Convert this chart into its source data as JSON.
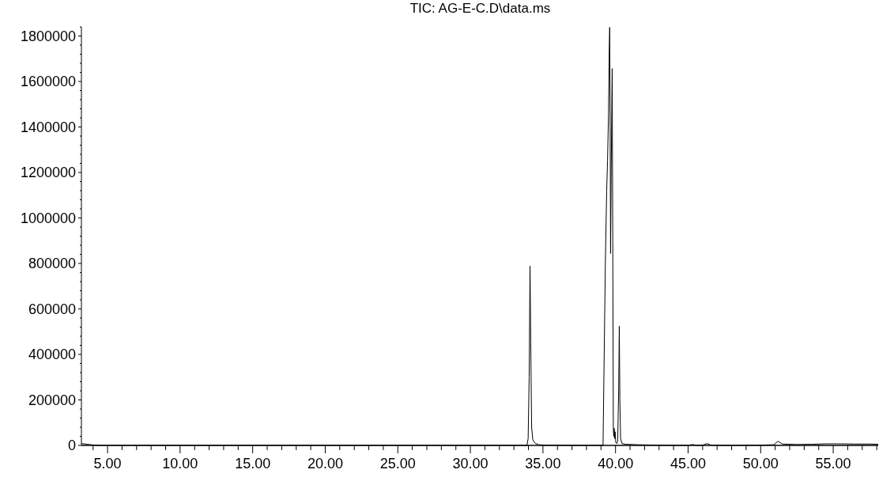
{
  "chart_data": {
    "type": "line",
    "title": "TIC: AG-E-C.D\\data.ms",
    "xlim": [
      3.2,
      58.1
    ],
    "ylim": [
      0,
      1840000
    ],
    "xticks": [
      {
        "value": 4,
        "label": null
      },
      {
        "value": 5,
        "label": "5.00"
      },
      {
        "value": 6,
        "label": null
      },
      {
        "value": 7,
        "label": null
      },
      {
        "value": 8,
        "label": null
      },
      {
        "value": 9,
        "label": null
      },
      {
        "value": 10,
        "label": "10.00"
      },
      {
        "value": 11,
        "label": null
      },
      {
        "value": 12,
        "label": null
      },
      {
        "value": 13,
        "label": null
      },
      {
        "value": 14,
        "label": null
      },
      {
        "value": 15,
        "label": "15.00"
      },
      {
        "value": 16,
        "label": null
      },
      {
        "value": 17,
        "label": null
      },
      {
        "value": 18,
        "label": null
      },
      {
        "value": 19,
        "label": null
      },
      {
        "value": 20,
        "label": "20.00"
      },
      {
        "value": 21,
        "label": null
      },
      {
        "value": 22,
        "label": null
      },
      {
        "value": 23,
        "label": null
      },
      {
        "value": 24,
        "label": null
      },
      {
        "value": 25,
        "label": "25.00"
      },
      {
        "value": 26,
        "label": null
      },
      {
        "value": 27,
        "label": null
      },
      {
        "value": 28,
        "label": null
      },
      {
        "value": 29,
        "label": null
      },
      {
        "value": 30,
        "label": "30.00"
      },
      {
        "value": 31,
        "label": null
      },
      {
        "value": 32,
        "label": null
      },
      {
        "value": 33,
        "label": null
      },
      {
        "value": 34,
        "label": null
      },
      {
        "value": 35,
        "label": "35.00"
      },
      {
        "value": 36,
        "label": null
      },
      {
        "value": 37,
        "label": null
      },
      {
        "value": 38,
        "label": null
      },
      {
        "value": 39,
        "label": null
      },
      {
        "value": 40,
        "label": "40.00"
      },
      {
        "value": 41,
        "label": null
      },
      {
        "value": 42,
        "label": null
      },
      {
        "value": 43,
        "label": null
      },
      {
        "value": 44,
        "label": null
      },
      {
        "value": 45,
        "label": "45.00"
      },
      {
        "value": 46,
        "label": null
      },
      {
        "value": 47,
        "label": null
      },
      {
        "value": 48,
        "label": null
      },
      {
        "value": 49,
        "label": null
      },
      {
        "value": 50,
        "label": "50.00"
      },
      {
        "value": 51,
        "label": null
      },
      {
        "value": 52,
        "label": null
      },
      {
        "value": 53,
        "label": null
      },
      {
        "value": 54,
        "label": null
      },
      {
        "value": 55,
        "label": "55.00"
      },
      {
        "value": 56,
        "label": null
      },
      {
        "value": 57,
        "label": null
      },
      {
        "value": 58,
        "label": null
      }
    ],
    "yticks": [
      0,
      {
        "value": 40000,
        "label": null
      },
      {
        "value": 80000,
        "label": null
      },
      {
        "value": 120000,
        "label": null
      },
      {
        "value": 160000,
        "label": null
      },
      200000,
      {
        "value": 240000,
        "label": null
      },
      {
        "value": 280000,
        "label": null
      },
      {
        "value": 320000,
        "label": null
      },
      {
        "value": 360000,
        "label": null
      },
      400000,
      {
        "value": 440000,
        "label": null
      },
      {
        "value": 480000,
        "label": null
      },
      {
        "value": 520000,
        "label": null
      },
      {
        "value": 560000,
        "label": null
      },
      600000,
      {
        "value": 640000,
        "label": null
      },
      {
        "value": 680000,
        "label": null
      },
      {
        "value": 720000,
        "label": null
      },
      {
        "value": 760000,
        "label": null
      },
      800000,
      {
        "value": 840000,
        "label": null
      },
      {
        "value": 880000,
        "label": null
      },
      {
        "value": 920000,
        "label": null
      },
      {
        "value": 960000,
        "label": null
      },
      1000000,
      {
        "value": 1040000,
        "label": null
      },
      {
        "value": 1080000,
        "label": null
      },
      {
        "value": 1120000,
        "label": null
      },
      {
        "value": 1160000,
        "label": null
      },
      1200000,
      {
        "value": 1240000,
        "label": null
      },
      {
        "value": 1280000,
        "label": null
      },
      {
        "value": 1320000,
        "label": null
      },
      {
        "value": 1360000,
        "label": null
      },
      1400000,
      {
        "value": 1440000,
        "label": null
      },
      {
        "value": 1480000,
        "label": null
      },
      {
        "value": 1520000,
        "label": null
      },
      {
        "value": 1560000,
        "label": null
      },
      1600000,
      {
        "value": 1640000,
        "label": null
      },
      {
        "value": 1680000,
        "label": null
      },
      {
        "value": 1720000,
        "label": null
      },
      {
        "value": 1760000,
        "label": null
      },
      1800000,
      {
        "value": 1840000,
        "label": null
      }
    ],
    "grid": false,
    "marker": "none",
    "line_style": "solid",
    "series": [
      {
        "color": "#000000",
        "x": [
          3.2,
          3.6,
          4.0,
          4.5,
          5.0,
          10,
          15,
          20,
          25,
          30,
          33.0,
          33.9,
          33.98,
          34.05,
          34.11,
          34.16,
          34.22,
          34.3,
          34.45,
          34.7,
          35.2,
          37,
          39.0,
          39.14,
          39.3,
          39.39,
          39.45,
          39.52,
          39.57,
          39.6,
          39.63,
          39.66,
          39.7,
          39.77,
          39.81,
          39.85,
          39.88,
          39.91,
          39.94,
          39.97,
          40.02,
          40.08,
          40.15,
          40.22,
          40.26,
          40.3,
          40.35,
          40.45,
          40.7,
          41.5,
          43,
          45.0,
          45.3,
          45.6,
          46.0,
          46.3,
          46.6,
          47.5,
          50,
          50.9,
          51.2,
          51.5,
          52.5,
          53.5,
          54.5,
          55.5,
          56.5,
          57.5,
          58.1
        ],
        "values": [
          8000,
          5000,
          2000,
          0,
          0,
          0,
          0,
          0,
          0,
          0,
          0,
          0,
          30000,
          300000,
          789000,
          450000,
          80000,
          25000,
          10000,
          3000,
          1000,
          0,
          0,
          0,
          800000,
          1119000,
          1250000,
          1463000,
          1750000,
          1838000,
          1400000,
          844000,
          1200000,
          1657000,
          900000,
          73000,
          40000,
          75000,
          30000,
          60000,
          12000,
          8000,
          20000,
          250000,
          524000,
          200000,
          30000,
          8000,
          5000,
          3000,
          1000,
          0,
          4000,
          0,
          1000,
          8000,
          1000,
          0,
          1000,
          3000,
          18000,
          6000,
          4000,
          5000,
          7000,
          7000,
          6000,
          6000,
          5000
        ]
      }
    ]
  }
}
